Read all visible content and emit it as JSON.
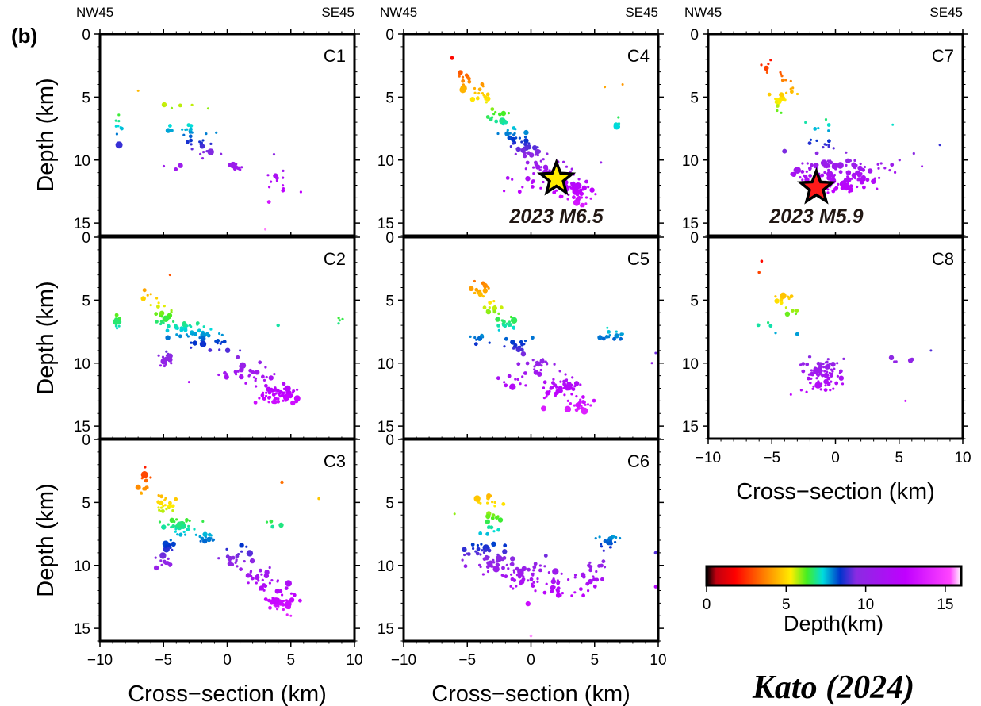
{
  "figure": {
    "panel_label": "(b)",
    "credit": "Kato (2024)"
  },
  "axis_text": {
    "ylabel": "Depth (km)",
    "xlabel": "Cross−section (km)",
    "nw": "NW45",
    "se": "SE45",
    "x_ticks": [
      "−10",
      "−5",
      "0",
      "5",
      "10"
    ],
    "y_ticks": [
      "0",
      "5",
      "10",
      "15"
    ]
  },
  "annotations": {
    "c4_star": "2023 M6.5",
    "c7_star": "2023 M5.9"
  },
  "colorbar": {
    "label": "Depth(km)",
    "ticks": [
      "0",
      "5",
      "10",
      "15"
    ],
    "range": [
      0,
      16
    ],
    "stops": [
      {
        "depth": 0,
        "color": "#000000"
      },
      {
        "depth": 0.6,
        "color": "#c00010"
      },
      {
        "depth": 1.8,
        "color": "#ff0000"
      },
      {
        "depth": 3.5,
        "color": "#ff7700"
      },
      {
        "depth": 5.3,
        "color": "#ffee00"
      },
      {
        "depth": 6.3,
        "color": "#44ee22"
      },
      {
        "depth": 7.3,
        "color": "#00dddd"
      },
      {
        "depth": 8.4,
        "color": "#0033cc"
      },
      {
        "depth": 9.4,
        "color": "#8a2be2"
      },
      {
        "depth": 12.5,
        "color": "#c000ff"
      },
      {
        "depth": 15.3,
        "color": "#ff44ff"
      },
      {
        "depth": 16,
        "color": "#ffffff"
      }
    ]
  },
  "chart_data": [
    {
      "type": "scatter",
      "panel": "C1",
      "xlim": [
        -10,
        10
      ],
      "ylim": [
        0,
        16
      ],
      "clusters": [
        {
          "x": -8.5,
          "y": 7.5,
          "n": 8,
          "sx": 0.2,
          "sy": 0.6
        },
        {
          "x": -3.0,
          "y": 7.8,
          "n": 18,
          "sx": 0.9,
          "sy": 0.4
        },
        {
          "x": -2.0,
          "y": 9.0,
          "n": 18,
          "sx": 0.8,
          "sy": 0.5
        },
        {
          "x": 0.5,
          "y": 10.6,
          "n": 8,
          "sx": 0.6,
          "sy": 0.2
        },
        {
          "x": 4.0,
          "y": 12.0,
          "n": 14,
          "sx": 0.8,
          "sy": 1.2
        },
        {
          "x": -4.5,
          "y": 6.0,
          "n": 4,
          "sx": 1.2,
          "sy": 0.5
        },
        {
          "x": -4.0,
          "y": 10.5,
          "n": 3,
          "sx": 1.0,
          "sy": 0.3
        }
      ],
      "points": [
        [
          -8.5,
          8.8,
          4.5
        ],
        [
          -7.0,
          4.5,
          1.5
        ],
        [
          -5.0,
          5.7,
          1.5
        ],
        [
          -1.5,
          5.9,
          1.5
        ],
        [
          3.0,
          15.5,
          1.5
        ]
      ]
    },
    {
      "type": "scatter",
      "panel": "C2",
      "xlim": [
        -10,
        10
      ],
      "ylim": [
        0,
        16
      ],
      "clusters": [
        {
          "x": -8.6,
          "y": 6.7,
          "n": 10,
          "sx": 0.2,
          "sy": 0.4
        },
        {
          "x": -6.0,
          "y": 4.8,
          "n": 6,
          "sx": 0.6,
          "sy": 0.5
        },
        {
          "x": -5.0,
          "y": 6.2,
          "n": 14,
          "sx": 0.6,
          "sy": 0.4
        },
        {
          "x": -4.0,
          "y": 7.1,
          "n": 30,
          "sx": 1.0,
          "sy": 0.3
        },
        {
          "x": -2.0,
          "y": 7.8,
          "n": 24,
          "sx": 1.0,
          "sy": 0.3
        },
        {
          "x": -1.5,
          "y": 8.5,
          "n": 14,
          "sx": 1.0,
          "sy": 0.3
        },
        {
          "x": -4.8,
          "y": 9.6,
          "n": 18,
          "sx": 0.5,
          "sy": 0.4
        },
        {
          "x": 1.5,
          "y": 10.8,
          "n": 30,
          "sx": 1.5,
          "sy": 0.6
        },
        {
          "x": 4.0,
          "y": 12.5,
          "n": 60,
          "sx": 1.1,
          "sy": 0.6
        },
        {
          "x": 9.0,
          "y": 6.6,
          "n": 4,
          "sx": 0.2,
          "sy": 0.3
        }
      ],
      "points": [
        [
          -6.5,
          4.2,
          2.5
        ],
        [
          -4.5,
          3.0,
          1.5
        ],
        [
          1.0,
          9.0,
          1.5
        ],
        [
          4.0,
          7.0,
          2.2
        ],
        [
          5.5,
          12.8,
          4.0
        ],
        [
          -3.0,
          11.5,
          1.5
        ]
      ]
    },
    {
      "type": "scatter",
      "panel": "C3",
      "xlim": [
        -10,
        10
      ],
      "ylim": [
        0,
        16
      ],
      "clusters": [
        {
          "x": -6.5,
          "y": 3.5,
          "n": 10,
          "sx": 0.4,
          "sy": 0.5
        },
        {
          "x": -5.0,
          "y": 5.2,
          "n": 24,
          "sx": 0.7,
          "sy": 0.5
        },
        {
          "x": -3.5,
          "y": 6.8,
          "n": 30,
          "sx": 0.9,
          "sy": 0.5
        },
        {
          "x": -1.5,
          "y": 7.8,
          "n": 14,
          "sx": 0.6,
          "sy": 0.3
        },
        {
          "x": -4.5,
          "y": 8.4,
          "n": 12,
          "sx": 0.3,
          "sy": 0.3
        },
        {
          "x": -4.8,
          "y": 9.7,
          "n": 16,
          "sx": 0.4,
          "sy": 0.3
        },
        {
          "x": 0.5,
          "y": 9.5,
          "n": 24,
          "sx": 0.8,
          "sy": 0.5
        },
        {
          "x": 2.5,
          "y": 11.2,
          "n": 30,
          "sx": 1.0,
          "sy": 0.6
        },
        {
          "x": 4.3,
          "y": 12.8,
          "n": 45,
          "sx": 0.7,
          "sy": 0.6
        },
        {
          "x": 3.5,
          "y": 6.7,
          "n": 4,
          "sx": 0.4,
          "sy": 0.2
        }
      ],
      "points": [
        [
          -6.5,
          2.8,
          4.5
        ],
        [
          -7.0,
          3.8,
          3.5
        ],
        [
          4.3,
          3.4,
          2.2
        ],
        [
          7.2,
          4.7,
          1.8
        ],
        [
          5.0,
          14.0,
          1.5
        ]
      ]
    },
    {
      "type": "scatter",
      "panel": "C4",
      "xlim": [
        -10,
        10
      ],
      "ylim": [
        0,
        16
      ],
      "clusters": [
        {
          "x": -5.0,
          "y": 3.5,
          "n": 12,
          "sx": 0.5,
          "sy": 0.5
        },
        {
          "x": -4.0,
          "y": 4.8,
          "n": 18,
          "sx": 0.5,
          "sy": 0.4
        },
        {
          "x": -2.5,
          "y": 6.5,
          "n": 16,
          "sx": 0.6,
          "sy": 0.4
        },
        {
          "x": -1.5,
          "y": 8.0,
          "n": 18,
          "sx": 0.6,
          "sy": 0.4
        },
        {
          "x": 0.0,
          "y": 9.2,
          "n": 24,
          "sx": 0.7,
          "sy": 0.4
        },
        {
          "x": 1.5,
          "y": 10.8,
          "n": 45,
          "sx": 1.0,
          "sy": 0.6
        },
        {
          "x": 3.5,
          "y": 12.4,
          "n": 70,
          "sx": 1.0,
          "sy": 0.6
        },
        {
          "x": -0.5,
          "y": 12.0,
          "n": 8,
          "sx": 1.0,
          "sy": 0.4
        },
        {
          "x": 6.8,
          "y": 7.2,
          "n": 6,
          "sx": 0.2,
          "sy": 0.3
        }
      ],
      "points": [
        [
          -6.2,
          1.9,
          2.5
        ],
        [
          5.8,
          4.2,
          1.5
        ],
        [
          7.2,
          4.0,
          1.5
        ],
        [
          5.5,
          10.2,
          1.5
        ]
      ],
      "star": {
        "x": 2.0,
        "y": 11.5,
        "color": "#ffee00"
      }
    },
    {
      "type": "scatter",
      "panel": "C5",
      "xlim": [
        -10,
        10
      ],
      "ylim": [
        0,
        16
      ],
      "clusters": [
        {
          "x": -4.0,
          "y": 4.0,
          "n": 14,
          "sx": 0.6,
          "sy": 0.4
        },
        {
          "x": -3.0,
          "y": 5.6,
          "n": 16,
          "sx": 0.6,
          "sy": 0.4
        },
        {
          "x": -2.0,
          "y": 7.0,
          "n": 18,
          "sx": 0.6,
          "sy": 0.4
        },
        {
          "x": -1.0,
          "y": 8.5,
          "n": 18,
          "sx": 0.6,
          "sy": 0.4
        },
        {
          "x": -4.0,
          "y": 8.0,
          "n": 10,
          "sx": 0.7,
          "sy": 0.4
        },
        {
          "x": 0.5,
          "y": 10.0,
          "n": 20,
          "sx": 0.7,
          "sy": 0.5
        },
        {
          "x": 2.5,
          "y": 12.0,
          "n": 50,
          "sx": 1.0,
          "sy": 0.6
        },
        {
          "x": -1.5,
          "y": 11.5,
          "n": 12,
          "sx": 0.8,
          "sy": 0.5
        },
        {
          "x": 3.8,
          "y": 13.2,
          "n": 20,
          "sx": 0.7,
          "sy": 0.4
        },
        {
          "x": 6.5,
          "y": 8.0,
          "n": 14,
          "sx": 0.8,
          "sy": 0.3
        }
      ],
      "points": [
        [
          4.2,
          13.8,
          4.5
        ],
        [
          1.0,
          13.6,
          3.5
        ],
        [
          6.0,
          7.2,
          1.5
        ],
        [
          9.8,
          9.2,
          1.5
        ],
        [
          9.5,
          10.0,
          1.5
        ]
      ]
    },
    {
      "type": "scatter",
      "panel": "C6",
      "xlim": [
        -10,
        10
      ],
      "ylim": [
        0,
        16
      ],
      "clusters": [
        {
          "x": -3.5,
          "y": 5.0,
          "n": 12,
          "sx": 0.6,
          "sy": 0.5
        },
        {
          "x": -3.0,
          "y": 6.3,
          "n": 8,
          "sx": 0.5,
          "sy": 0.3
        },
        {
          "x": -3.5,
          "y": 7.2,
          "n": 8,
          "sx": 0.6,
          "sy": 0.3
        },
        {
          "x": -4.0,
          "y": 8.7,
          "n": 16,
          "sx": 0.7,
          "sy": 0.3
        },
        {
          "x": -3.0,
          "y": 9.7,
          "n": 50,
          "sx": 1.3,
          "sy": 0.6
        },
        {
          "x": -0.5,
          "y": 11.0,
          "n": 40,
          "sx": 1.2,
          "sy": 0.8
        },
        {
          "x": 2.5,
          "y": 11.5,
          "n": 30,
          "sx": 1.3,
          "sy": 0.8
        },
        {
          "x": 5.0,
          "y": 10.5,
          "n": 20,
          "sx": 0.6,
          "sy": 0.8
        },
        {
          "x": 6.0,
          "y": 8.0,
          "n": 18,
          "sx": 0.8,
          "sy": 0.3
        }
      ],
      "points": [
        [
          -6.0,
          5.9,
          1.5
        ],
        [
          9.8,
          9.0,
          2.2
        ],
        [
          9.8,
          11.7,
          2.2
        ],
        [
          0.0,
          15.6,
          1.8
        ]
      ]
    },
    {
      "type": "scatter",
      "panel": "C7",
      "xlim": [
        -10,
        10
      ],
      "ylim": [
        0,
        16
      ],
      "clusters": [
        {
          "x": -5.5,
          "y": 2.5,
          "n": 5,
          "sx": 0.4,
          "sy": 0.4
        },
        {
          "x": -4.0,
          "y": 3.5,
          "n": 6,
          "sx": 0.4,
          "sy": 0.3
        },
        {
          "x": -4.0,
          "y": 4.8,
          "n": 16,
          "sx": 0.6,
          "sy": 0.5
        },
        {
          "x": -4.5,
          "y": 6.0,
          "n": 4,
          "sx": 0.5,
          "sy": 0.3
        },
        {
          "x": -1.5,
          "y": 7.5,
          "n": 6,
          "sx": 1.0,
          "sy": 0.3
        },
        {
          "x": -1.0,
          "y": 8.8,
          "n": 10,
          "sx": 1.0,
          "sy": 0.4
        },
        {
          "x": -1.0,
          "y": 10.8,
          "n": 60,
          "sx": 1.3,
          "sy": 0.7
        },
        {
          "x": 1.5,
          "y": 11.0,
          "n": 50,
          "sx": 1.0,
          "sy": 0.8
        },
        {
          "x": 0.0,
          "y": 12.2,
          "n": 20,
          "sx": 1.0,
          "sy": 0.4
        },
        {
          "x": 4.5,
          "y": 10.5,
          "n": 8,
          "sx": 1.3,
          "sy": 0.5
        }
      ],
      "points": [
        [
          -3.0,
          10.8,
          4.5
        ],
        [
          -4.0,
          9.3,
          3.0
        ],
        [
          8.2,
          8.8,
          1.5
        ],
        [
          4.5,
          7.2,
          1.5
        ],
        [
          6.8,
          10.5,
          1.5
        ]
      ],
      "star": {
        "x": -1.5,
        "y": 12.2,
        "color": "#ff1a1a"
      }
    },
    {
      "type": "scatter",
      "panel": "C8",
      "xlim": [
        -10,
        10
      ],
      "ylim": [
        0,
        16
      ],
      "clusters": [
        {
          "x": -4.0,
          "y": 4.8,
          "n": 10,
          "sx": 0.5,
          "sy": 0.4
        },
        {
          "x": -3.5,
          "y": 6.0,
          "n": 6,
          "sx": 0.5,
          "sy": 0.3
        },
        {
          "x": -5.5,
          "y": 6.8,
          "n": 4,
          "sx": 0.5,
          "sy": 0.3
        },
        {
          "x": -1.0,
          "y": 10.5,
          "n": 60,
          "sx": 1.2,
          "sy": 0.6
        },
        {
          "x": -1.0,
          "y": 11.7,
          "n": 25,
          "sx": 1.0,
          "sy": 0.5
        },
        {
          "x": 4.5,
          "y": 9.8,
          "n": 8,
          "sx": 1.0,
          "sy": 0.3
        }
      ],
      "points": [
        [
          -5.8,
          1.9,
          1.8
        ],
        [
          -6.0,
          2.8,
          1.8
        ],
        [
          -3.0,
          7.7,
          2.5
        ],
        [
          7.5,
          9.0,
          1.5
        ],
        [
          5.5,
          13.0,
          1.5
        ],
        [
          -3.5,
          12.5,
          1.5
        ]
      ]
    }
  ]
}
